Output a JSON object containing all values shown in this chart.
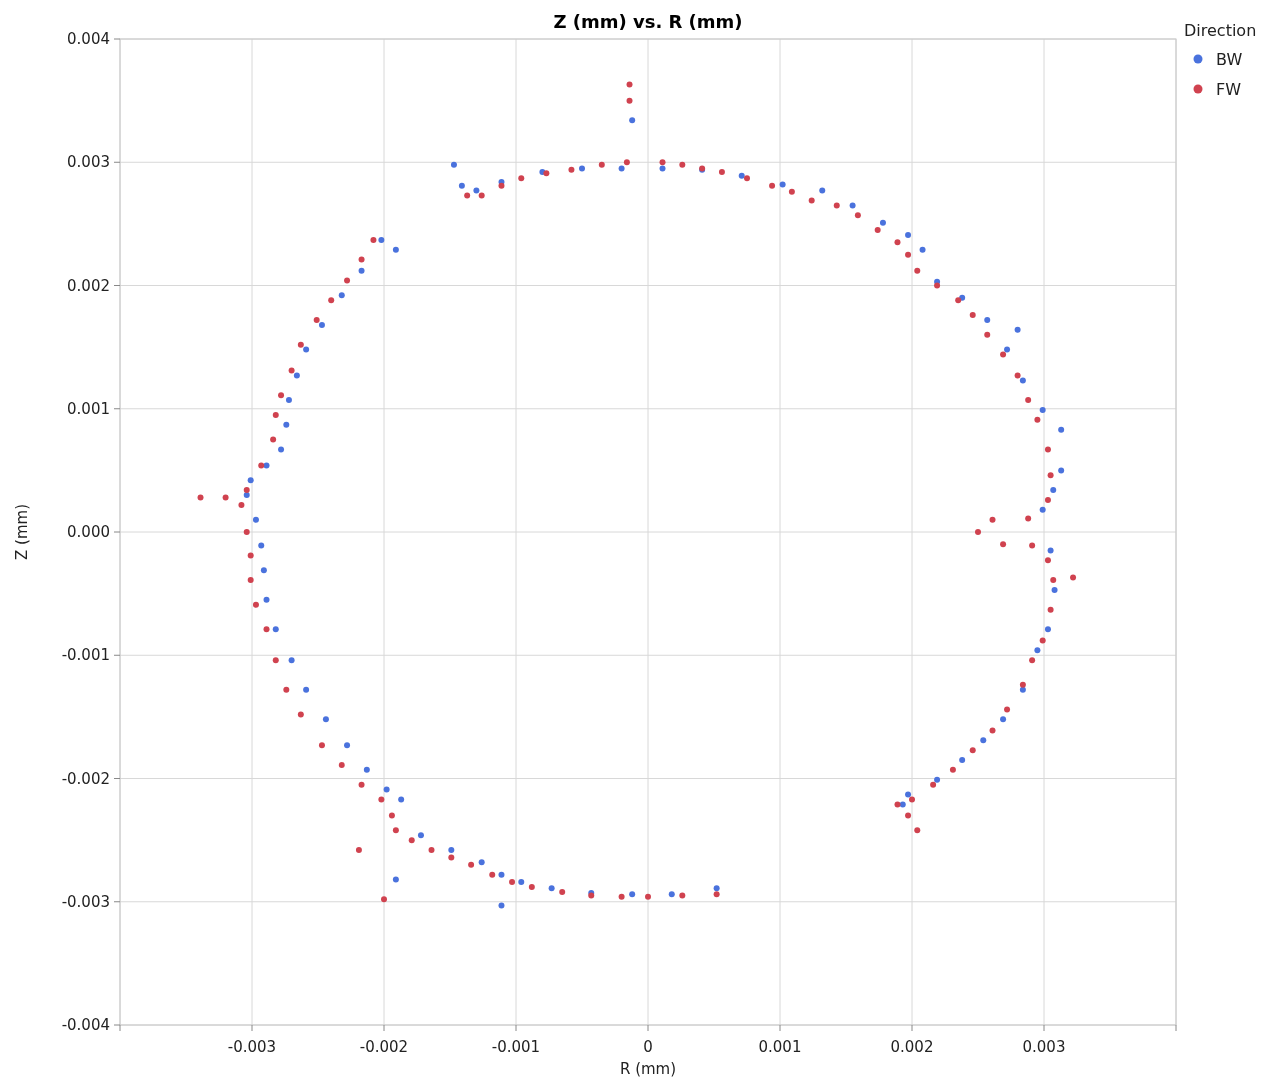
{
  "chart_data": {
    "type": "scatter",
    "title": "Z (mm) vs. R (mm)",
    "xlabel": "R (mm)",
    "ylabel": "Z (mm)",
    "legend_title": "Direction",
    "legend": "top right",
    "grid": true,
    "marker": "circle",
    "xlim": [
      -0.004,
      0.004
    ],
    "ylim": [
      -0.004,
      0.004
    ],
    "xticks": [
      {
        "value": -0.004,
        "label": null
      },
      -0.003,
      -0.002,
      -0.001,
      0,
      0.001,
      0.002,
      0.003,
      {
        "value": 0.004,
        "label": null
      }
    ],
    "yticks": [
      {
        "value": -0.004,
        "label": "-0.004"
      },
      {
        "value": -0.003,
        "label": "-0.003"
      },
      {
        "value": -0.002,
        "label": "-0.002"
      },
      {
        "value": -0.001,
        "label": "-0.001"
      },
      {
        "value": 0,
        "label": "0.000"
      },
      {
        "value": 0.001,
        "label": "0.001"
      },
      {
        "value": 0.002,
        "label": "0.002"
      },
      {
        "value": 0.003,
        "label": "0.003"
      },
      {
        "value": 0.004,
        "label": "0.004"
      }
    ],
    "series": [
      {
        "name": "BW",
        "color": "#4a72dd",
        "x": [
          -0.00147,
          -0.00141,
          -0.0013,
          -0.00111,
          -0.0008,
          -0.0005,
          -0.0002,
          0.00011,
          0.00041,
          0.00071,
          0.00102,
          0.00132,
          0.00155,
          0.00178,
          0.00197,
          0.00208,
          0.00219,
          0.00238,
          0.00257,
          0.00272,
          0.00284,
          0.00299,
          0.00313,
          0.00313,
          0.00307,
          0.00299,
          0.00305,
          0.00308,
          0.00303,
          0.00295,
          0.00284,
          0.00269,
          0.00254,
          0.00238,
          0.00219,
          0.00197,
          0.00193,
          0.0028,
          -0.00191,
          -0.00202,
          -0.00217,
          -0.00232,
          -0.00247,
          -0.00259,
          -0.00266,
          -0.00272,
          -0.00274,
          -0.00278,
          -0.00289,
          -0.00301,
          -0.00304,
          -0.00297,
          -0.00293,
          -0.00291,
          -0.00289,
          -0.00282,
          -0.0027,
          -0.00259,
          -0.00244,
          -0.00228,
          -0.00213,
          -0.00198,
          -0.00187,
          -0.00172,
          -0.00149,
          -0.00126,
          -0.00111,
          -0.00096,
          -0.00073,
          -0.00043,
          -0.00012,
          0.00018,
          0.00052,
          -0.00012,
          -0.00191,
          -0.00111
        ],
        "values": [
          0.00298,
          0.00281,
          0.00277,
          0.00284,
          0.00292,
          0.00295,
          0.00295,
          0.00295,
          0.00294,
          0.00289,
          0.00282,
          0.00277,
          0.00265,
          0.00251,
          0.00241,
          0.00229,
          0.00203,
          0.0019,
          0.00172,
          0.00148,
          0.00123,
          0.00099,
          0.00083,
          0.0005,
          0.00034,
          0.00018,
          -0.00015,
          -0.00047,
          -0.00079,
          -0.00096,
          -0.00128,
          -0.00152,
          -0.00169,
          -0.00185,
          -0.00201,
          -0.00213,
          -0.00221,
          0.00164,
          0.00229,
          0.00237,
          0.00212,
          0.00192,
          0.00168,
          0.00148,
          0.00127,
          0.00107,
          0.00087,
          0.00067,
          0.00054,
          0.00042,
          0.0003,
          0.0001,
          -0.00011,
          -0.00031,
          -0.00055,
          -0.00079,
          -0.00104,
          -0.00128,
          -0.00152,
          -0.00173,
          -0.00193,
          -0.00209,
          -0.00217,
          -0.00246,
          -0.00258,
          -0.00268,
          -0.00278,
          -0.00284,
          -0.00289,
          -0.00293,
          -0.00294,
          -0.00294,
          -0.00289,
          0.00334,
          -0.00282,
          -0.00303
        ]
      },
      {
        "name": "FW",
        "color": "#d0424f",
        "x": [
          -0.00137,
          -0.00126,
          -0.00111,
          -0.00096,
          -0.00077,
          -0.00058,
          -0.00035,
          -0.00016,
          0.00011,
          0.00026,
          0.00041,
          0.00056,
          0.00075,
          0.00094,
          0.00109,
          0.00124,
          0.00143,
          0.00159,
          0.00174,
          0.00189,
          0.00197,
          0.00204,
          0.00219,
          0.00235,
          0.00246,
          0.00257,
          0.00269,
          0.0028,
          0.00288,
          0.00295,
          0.00303,
          0.00305,
          0.00303,
          0.00288,
          0.00261,
          0.0025,
          0.00269,
          0.00291,
          0.00303,
          0.00307,
          0.00305,
          0.00299,
          0.00291,
          0.00284,
          0.00272,
          0.00261,
          0.00246,
          0.00231,
          0.00216,
          0.002,
          0.00189,
          0.00197,
          0.00204,
          0.00322,
          -0.00208,
          -0.00217,
          -0.00228,
          -0.0024,
          -0.00251,
          -0.00263,
          -0.0027,
          -0.00278,
          -0.00282,
          -0.00284,
          -0.00293,
          -0.00304,
          -0.00308,
          -0.00304,
          -0.00301,
          -0.00301,
          -0.00297,
          -0.00289,
          -0.00282,
          -0.00274,
          -0.00263,
          -0.00247,
          -0.00232,
          -0.00217,
          -0.00202,
          -0.00194,
          -0.00191,
          -0.00179,
          -0.00164,
          -0.00149,
          -0.00134,
          -0.00118,
          -0.00103,
          -0.00088,
          -0.00065,
          -0.00043,
          -0.0002,
          0,
          0.00026,
          0.00052,
          -0.00339,
          -0.0032,
          -0.00219,
          -0.00014,
          -0.00014,
          -0.002
        ],
        "values": [
          0.00273,
          0.00273,
          0.00281,
          0.00287,
          0.00291,
          0.00294,
          0.00298,
          0.003,
          0.003,
          0.00298,
          0.00295,
          0.00292,
          0.00287,
          0.00281,
          0.00276,
          0.00269,
          0.00265,
          0.00257,
          0.00245,
          0.00235,
          0.00225,
          0.00212,
          0.002,
          0.00188,
          0.00176,
          0.0016,
          0.00144,
          0.00127,
          0.00107,
          0.00091,
          0.00067,
          0.00046,
          0.00026,
          0.00011,
          0.0001,
          0,
          -0.0001,
          -0.00011,
          -0.00023,
          -0.00039,
          -0.00063,
          -0.00088,
          -0.00104,
          -0.00124,
          -0.00144,
          -0.00161,
          -0.00177,
          -0.00193,
          -0.00205,
          -0.00217,
          -0.00221,
          -0.0023,
          -0.00242,
          -0.00037,
          0.00237,
          0.00221,
          0.00204,
          0.00188,
          0.00172,
          0.00152,
          0.00131,
          0.00111,
          0.00095,
          0.00075,
          0.00054,
          0.00034,
          0.00022,
          0,
          -0.00019,
          -0.00039,
          -0.00059,
          -0.00079,
          -0.00104,
          -0.00128,
          -0.00148,
          -0.00173,
          -0.00189,
          -0.00205,
          -0.00217,
          -0.0023,
          -0.00242,
          -0.0025,
          -0.00258,
          -0.00264,
          -0.0027,
          -0.00278,
          -0.00284,
          -0.00288,
          -0.00292,
          -0.00295,
          -0.00296,
          -0.00296,
          -0.00295,
          -0.00294,
          0.00028,
          0.00028,
          -0.00258,
          0.00363,
          0.0035,
          -0.00298
        ]
      }
    ]
  }
}
